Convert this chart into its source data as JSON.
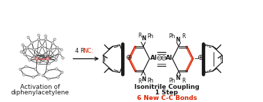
{
  "bg_color": "#ffffff",
  "left_label_line1": "Activation of",
  "left_label_line2": "diphenylacetylene",
  "right_label_line1": "Isonitrile Coupling",
  "right_label_line2": "1 Step",
  "right_label_line3": "6 New C-C Bonds",
  "black": "#1a1a1a",
  "red": "#dd2200",
  "gray": "#888888",
  "light_gray": "#dddddd",
  "label_fontsize": 6.5,
  "small_fontsize": 5.5,
  "arrow_fontsize": 6.5
}
